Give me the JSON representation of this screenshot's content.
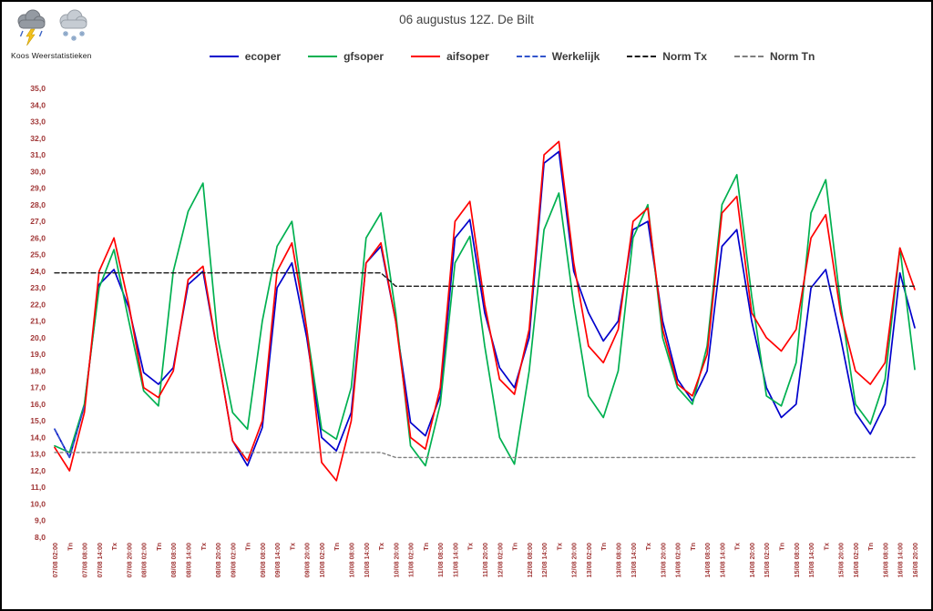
{
  "header": {
    "brand": "Koos Weerstatistieken",
    "icons": [
      "thunderstorm-icon",
      "snow-shower-icon"
    ]
  },
  "chart_data": {
    "type": "line",
    "title": "06 augustus 12Z. De Bilt",
    "xlabel": "",
    "ylabel": "",
    "ylim": [
      8,
      35
    ],
    "y_tick_step": 1,
    "grid": false,
    "legend_position": "top",
    "axis_label_color": "#A03636",
    "y_tick_labels": [
      "35,0",
      "34,0",
      "33,0",
      "32,0",
      "31,0",
      "30,0",
      "29,0",
      "28,0",
      "27,0",
      "26,0",
      "25,0",
      "24,0",
      "23,0",
      "22,0",
      "21,0",
      "20,0",
      "19,0",
      "18,0",
      "17,0",
      "16,0",
      "15,0",
      "14,0",
      "13,0",
      "12,0",
      "11,0",
      "10,0",
      "9,0",
      "8,0"
    ],
    "categories": [
      "07/08 02:00",
      "Tn",
      "07/08 08:00",
      "07/08 14:00",
      "Tx",
      "07/08 20:00",
      "08/08 02:00",
      "Tn",
      "08/08 08:00",
      "08/08 14:00",
      "Tx",
      "08/08 20:00",
      "09/08 02:00",
      "Tn",
      "09/08 08:00",
      "09/08 14:00",
      "Tx",
      "09/08 20:00",
      "10/08 02:00",
      "Tn",
      "10/08 08:00",
      "10/08 14:00",
      "Tx",
      "10/08 20:00",
      "11/08 02:00",
      "Tn",
      "11/08 08:00",
      "11/08 14:00",
      "Tx",
      "11/08 20:00",
      "12/08 02:00",
      "Tn",
      "12/08 08:00",
      "12/08 14:00",
      "Tx",
      "12/08 20:00",
      "13/08 02:00",
      "Tn",
      "13/08 08:00",
      "13/08 14:00",
      "Tx",
      "13/08 20:00",
      "14/08 02:00",
      "Tn",
      "14/08 08:00",
      "14/08 14:00",
      "Tx",
      "14/08 20:00",
      "15/08 02:00",
      "Tn",
      "15/08 08:00",
      "15/08 14:00",
      "Tx",
      "15/08 20:00",
      "16/08 02:00",
      "Tn",
      "16/08 08:00",
      "16/08 14:00",
      "16/08 20:00"
    ],
    "series": [
      {
        "name": "ecoper",
        "color": "#0000CC",
        "line_style": "solid",
        "values": [
          14.5,
          12.8,
          15.9,
          23.2,
          24.1,
          21.8,
          17.9,
          17.2,
          18.2,
          23.2,
          24.0,
          19.0,
          13.8,
          12.3,
          14.6,
          23.0,
          24.5,
          20.0,
          14.0,
          13.2,
          15.5,
          24.5,
          25.5,
          21.0,
          14.9,
          14.1,
          16.5,
          26.0,
          27.1,
          21.5,
          18.2,
          17.0,
          20.0,
          30.5,
          31.2,
          24.0,
          21.5,
          19.8,
          21.0,
          26.5,
          27.0,
          21.0,
          17.5,
          16.2,
          18.0,
          25.5,
          26.5,
          21.0,
          17.0,
          15.2,
          16.0,
          23.0,
          24.1,
          20.0,
          15.5,
          14.2,
          16.0,
          23.9,
          20.6
        ]
      },
      {
        "name": "gfsoper",
        "color": "#00B050",
        "line_style": "solid",
        "values": [
          13.5,
          13.1,
          16.0,
          23.0,
          25.3,
          21.0,
          16.8,
          15.9,
          24.0,
          27.6,
          29.3,
          20.0,
          15.5,
          14.5,
          21.0,
          25.5,
          27.0,
          20.5,
          14.5,
          13.9,
          17.0,
          26.0,
          27.5,
          21.5,
          13.5,
          12.3,
          16.0,
          24.5,
          26.1,
          19.5,
          14.0,
          12.4,
          18.0,
          26.5,
          28.7,
          22.0,
          16.5,
          15.2,
          18.0,
          26.0,
          28.0,
          20.0,
          17.0,
          16.0,
          19.5,
          28.0,
          29.8,
          22.5,
          16.5,
          15.9,
          18.5,
          27.5,
          29.5,
          22.0,
          16.0,
          14.8,
          17.5,
          25.4,
          18.1
        ]
      },
      {
        "name": "aifsoper",
        "color": "#FF0000",
        "line_style": "solid",
        "values": [
          13.4,
          12.0,
          15.5,
          24.0,
          26.0,
          22.0,
          17.0,
          16.4,
          18.0,
          23.5,
          24.3,
          19.0,
          13.8,
          12.6,
          15.0,
          24.0,
          25.7,
          20.5,
          12.5,
          11.4,
          15.0,
          24.5,
          25.7,
          21.0,
          14.0,
          13.3,
          17.0,
          27.0,
          28.2,
          22.0,
          17.5,
          16.6,
          20.5,
          31.0,
          31.8,
          24.5,
          19.5,
          18.5,
          20.5,
          27.0,
          27.8,
          20.5,
          17.2,
          16.5,
          19.0,
          27.5,
          28.5,
          21.5,
          20.0,
          19.2,
          20.5,
          26.0,
          27.4,
          21.5,
          18.0,
          17.2,
          18.5,
          25.4,
          22.9
        ]
      },
      {
        "name": "Werkelijk",
        "color": "#3355CC",
        "line_style": "dashed",
        "values": [
          14.5,
          12.8,
          15.9
        ]
      },
      {
        "name": "Norm Tx",
        "color": "#1A1A1A",
        "line_style": "dashed",
        "values": [
          23.9,
          23.9,
          23.9,
          23.9,
          23.9,
          23.9,
          23.9,
          23.9,
          23.9,
          23.9,
          23.9,
          23.9,
          23.9,
          23.9,
          23.9,
          23.9,
          23.9,
          23.9,
          23.9,
          23.9,
          23.9,
          23.9,
          23.9,
          23.1,
          23.1,
          23.1,
          23.1,
          23.1,
          23.1,
          23.1,
          23.1,
          23.1,
          23.1,
          23.1,
          23.1,
          23.1,
          23.1,
          23.1,
          23.1,
          23.1,
          23.1,
          23.1,
          23.1,
          23.1,
          23.1,
          23.1,
          23.1,
          23.1,
          23.1,
          23.1,
          23.1,
          23.1,
          23.1,
          23.1,
          23.1,
          23.1,
          23.1,
          23.1,
          23.1
        ]
      },
      {
        "name": "Norm Tn",
        "color": "#7F7F7F",
        "line_style": "dashed",
        "values": [
          13.1,
          13.1,
          13.1,
          13.1,
          13.1,
          13.1,
          13.1,
          13.1,
          13.1,
          13.1,
          13.1,
          13.1,
          13.1,
          13.1,
          13.1,
          13.1,
          13.1,
          13.1,
          13.1,
          13.1,
          13.1,
          13.1,
          13.1,
          12.8,
          12.8,
          12.8,
          12.8,
          12.8,
          12.8,
          12.8,
          12.8,
          12.8,
          12.8,
          12.8,
          12.8,
          12.8,
          12.8,
          12.8,
          12.8,
          12.8,
          12.8,
          12.8,
          12.8,
          12.8,
          12.8,
          12.8,
          12.8,
          12.8,
          12.8,
          12.8,
          12.8,
          12.8,
          12.8,
          12.8,
          12.8,
          12.8,
          12.8,
          12.8,
          12.8
        ]
      }
    ]
  }
}
